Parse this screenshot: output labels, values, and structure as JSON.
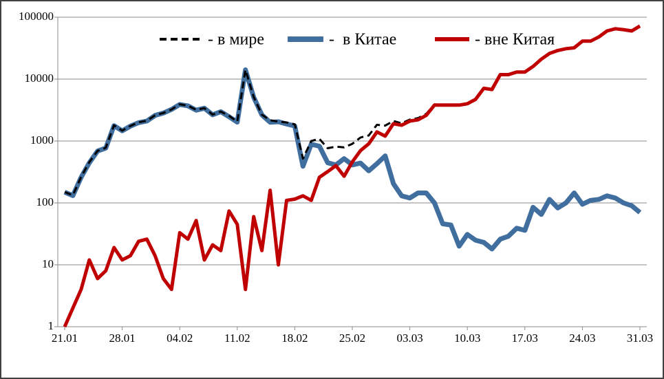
{
  "chart_data": {
    "type": "line",
    "log_scale": true,
    "grid": true,
    "legend": "top",
    "categories": [
      "21.01",
      null,
      null,
      null,
      null,
      null,
      null,
      "28.01",
      null,
      null,
      null,
      null,
      null,
      null,
      "04.02",
      null,
      null,
      null,
      null,
      null,
      null,
      "11.02",
      null,
      null,
      null,
      null,
      null,
      null,
      "18.02",
      null,
      null,
      null,
      null,
      null,
      null,
      "25.02",
      null,
      null,
      null,
      null,
      null,
      null,
      "03.03",
      null,
      null,
      null,
      null,
      null,
      null,
      "10.03",
      null,
      null,
      null,
      null,
      null,
      null,
      "17.03",
      null,
      null,
      null,
      null,
      null,
      null,
      "24.03",
      null,
      null,
      null,
      null,
      null,
      null,
      "31.03"
    ],
    "ylim": [
      1,
      100000
    ],
    "yticks": [
      1,
      10,
      100,
      1000,
      10000,
      100000
    ],
    "series": [
      {
        "name": "- в мире",
        "color": "#000000",
        "values": [
          150,
          133,
          263,
          456,
          694,
          777,
          1790,
          1471,
          1751,
          2005,
          2125,
          2604,
          2835,
          3239,
          3920,
          3720,
          3195,
          3397,
          2673,
          2990,
          2541,
          2060,
          14112,
          5150,
          2658,
          2168,
          2058,
          1996,
          1864,
          521,
          999,
          1083,
          765,
          810,
          790,
          900,
          1140,
          1230,
          1830,
          1775,
          2105,
          1930,
          2220,
          2345,
          2745,
          3900,
          3846,
          3844,
          3820,
          4031,
          4725,
          7123,
          6818,
          11826,
          11829,
          13039,
          13036,
          16085,
          21065,
          26114,
          29083,
          31100,
          32145,
          41095,
          41110,
          48114,
          60130,
          65120,
          63100,
          60090,
          72070
        ]
      },
      {
        "name": "-  в Китае",
        "color": "#3f6e9f",
        "values": [
          149,
          131,
          259,
          444,
          688,
          769,
          1771,
          1459,
          1737,
          1981,
          2099,
          2590,
          2829,
          3235,
          3887,
          3694,
          3143,
          3385,
          2652,
          2973,
          2467,
          2015,
          14108,
          5090,
          2641,
          2008,
          2048,
          1886,
          1749,
          391,
          889,
          823,
          445,
          410,
          520,
          410,
          440,
          330,
          430,
          575,
          205,
          130,
          120,
          145,
          145,
          100,
          46,
          44,
          20,
          31,
          25,
          23,
          18,
          26,
          29,
          39,
          36,
          85,
          65,
          114,
          83,
          100,
          145,
          95,
          110,
          114,
          130,
          120,
          100,
          90,
          70
        ]
      },
      {
        "name": "- вне Китая",
        "color": "#c00000",
        "values": [
          1,
          2,
          4,
          12,
          6,
          8,
          19,
          12,
          14,
          24,
          26,
          14,
          6,
          4,
          33,
          26,
          52,
          12,
          21,
          17,
          74,
          45,
          4,
          60,
          17,
          160,
          10,
          110,
          115,
          130,
          110,
          260,
          320,
          400,
          270,
          460,
          700,
          900,
          1400,
          1200,
          1900,
          1800,
          2100,
          2200,
          2600,
          3800,
          3800,
          3800,
          3800,
          4000,
          4700,
          7100,
          6800,
          11800,
          11800,
          13000,
          13000,
          16000,
          21000,
          26000,
          29000,
          31000,
          32000,
          41000,
          41000,
          48000,
          60000,
          65000,
          63000,
          60000,
          72000
        ]
      }
    ]
  }
}
